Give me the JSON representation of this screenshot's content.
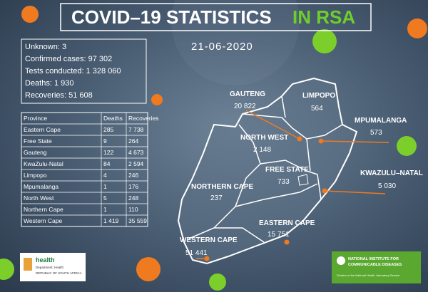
{
  "header": {
    "title": "COVID–19 STATISTICS",
    "highlight": "IN RSA",
    "date": "21-06-2020"
  },
  "summary": [
    "Unknown: 3",
    "Confirmed cases: 97 302",
    "Tests conducted: 1 328 060",
    "Deaths: 1 930",
    "Recoveries: 51 608"
  ],
  "table": {
    "header": [
      "Province",
      "Deaths",
      "Recoveries"
    ],
    "rows": [
      [
        "Eastern Cape",
        "285",
        "7 738"
      ],
      [
        "Free State",
        "9",
        "264"
      ],
      [
        "Gauteng",
        "122",
        "4 673"
      ],
      [
        "KwaZulu-Natal",
        "84",
        "2 594"
      ],
      [
        "Limpopo",
        "4",
        "246"
      ],
      [
        "Mpumalanga",
        "1",
        "176"
      ],
      [
        "North West",
        "5",
        "248"
      ],
      [
        "Northern Cape",
        "1",
        "110"
      ],
      [
        "Western Cape",
        "1 419",
        "35 559"
      ]
    ]
  },
  "map": [
    {
      "name": "GAUTENG",
      "cases": "20 822"
    },
    {
      "name": "LIMPOPO",
      "cases": "564"
    },
    {
      "name": "MPUMALANGA",
      "cases": "573"
    },
    {
      "name": "NORTH WEST",
      "cases": "2 148"
    },
    {
      "name": "FREE STATE",
      "cases": "733"
    },
    {
      "name": "KWAZULU–NATAL",
      "cases": "5 030"
    },
    {
      "name": "NORTHERN CAPE",
      "cases": "237"
    },
    {
      "name": "EASTERN CAPE",
      "cases": "15 751"
    },
    {
      "name": "WESTERN CAPE",
      "cases": "51 441"
    }
  ],
  "logos": {
    "health": {
      "name": "health",
      "department": "Department: Health",
      "country": "REPUBLIC OF SOUTH AFRICA"
    },
    "nicd": {
      "name_line1": "NATIONAL INSTITUTE FOR",
      "name_line2": "COMMUNICABLE DISEASES",
      "division": "Division of the National Health Laboratory Service"
    }
  }
}
